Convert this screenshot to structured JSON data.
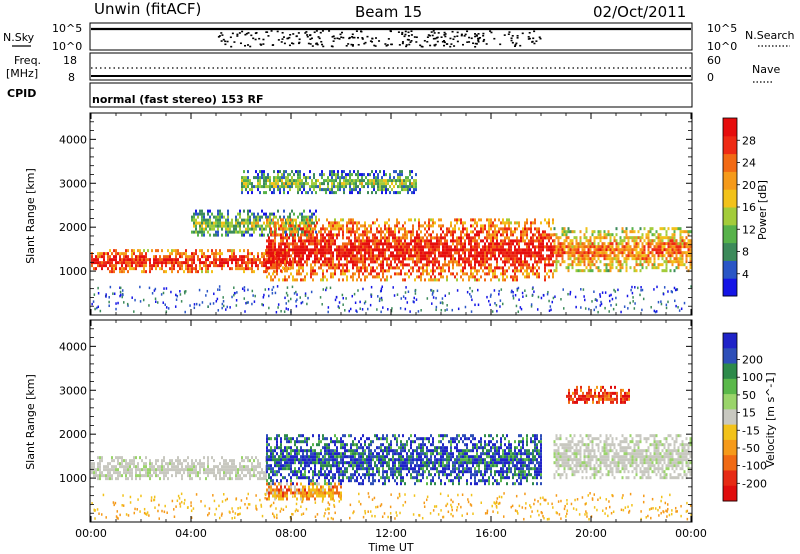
{
  "header": {
    "station": "Unwin (fitACF)",
    "beam": "Beam 15",
    "date": "02/Oct/2011"
  },
  "top_panels": {
    "nsky_label": "N.Sky",
    "nsky_ticks": [
      "10^5",
      "10^0"
    ],
    "nsearch_label": "N.Search",
    "nsearch_ticks": [
      "10^5",
      "10^0"
    ],
    "freq_label": "Freq.",
    "freq_unit": "[MHz]",
    "freq_ticks": [
      "18",
      "8"
    ],
    "nave_label": "Nave",
    "nave_ticks": [
      "60",
      "0"
    ],
    "cpid_label": "CPID",
    "cpid_text": "normal (fast stereo) 153 RF"
  },
  "chart_data": [
    {
      "type": "heatmap",
      "name": "power",
      "ylabel": "Slant Range [km]",
      "xlabel": "Time UT",
      "yticks": [
        "1000",
        "2000",
        "3000",
        "4000"
      ],
      "ylim": [
        0,
        4600
      ],
      "xlim": [
        "00:00",
        "24:00"
      ],
      "xticks": [
        "00:00",
        "04:00",
        "08:00",
        "12:00",
        "16:00",
        "20:00",
        "00:00"
      ],
      "colorbar": {
        "label": "Power [dB]",
        "ticks": [
          "4",
          "8",
          "12",
          "16",
          "20",
          "24",
          "28"
        ],
        "colors": [
          "#1515e6",
          "#2a56c6",
          "#3c8a5a",
          "#57b24a",
          "#a3cc3a",
          "#f2c21a",
          "#f59a1a",
          "#f26a14",
          "#ee2a14",
          "#e60d0d"
        ]
      },
      "regions": [
        {
          "t0": 0.0,
          "t1": 8.0,
          "r0": 1000,
          "r1": 1500,
          "level": "strong"
        },
        {
          "t0": 4.0,
          "t1": 9.0,
          "r0": 1800,
          "r1": 2400,
          "level": "weak"
        },
        {
          "t0": 7.0,
          "t1": 18.5,
          "r0": 800,
          "r1": 2200,
          "level": "strong"
        },
        {
          "t0": 18.5,
          "t1": 24.0,
          "r0": 1000,
          "r1": 2000,
          "level": "medium"
        },
        {
          "t0": 6.0,
          "t1": 13.0,
          "r0": 2800,
          "r1": 3300,
          "level": "weak"
        }
      ]
    },
    {
      "type": "heatmap",
      "name": "velocity",
      "ylabel": "Slant Range [km]",
      "xlabel": "Time UT",
      "yticks": [
        "1000",
        "2000",
        "3000",
        "4000"
      ],
      "ylim": [
        0,
        4600
      ],
      "xlim": [
        "00:00",
        "24:00"
      ],
      "xticks": [
        "00:00",
        "04:00",
        "08:00",
        "12:00",
        "16:00",
        "20:00",
        "00:00"
      ],
      "colorbar": {
        "label": "Velocity [m s^-1]",
        "ticks": [
          "200",
          "100",
          "50",
          "15",
          "-15",
          "-50",
          "-100",
          "-200"
        ],
        "colors": [
          "#1f23c8",
          "#2e4fb8",
          "#2d8a4a",
          "#5ab84a",
          "#9ad46a",
          "#c8c8c0",
          "#f2c21a",
          "#f59a1a",
          "#f06a14",
          "#e62a14",
          "#e00d0d"
        ]
      },
      "regions": [
        {
          "t0": 0.0,
          "t1": 7.0,
          "r0": 1000,
          "r1": 1500,
          "velocity": 0
        },
        {
          "t0": 7.0,
          "t1": 18.0,
          "r0": 900,
          "r1": 2000,
          "velocity": 100
        },
        {
          "t0": 7.0,
          "t1": 10.0,
          "r0": 500,
          "r1": 900,
          "velocity": -60
        },
        {
          "t0": 18.5,
          "t1": 24.0,
          "r0": 1000,
          "r1": 2000,
          "velocity": 0
        },
        {
          "t0": 19.0,
          "t1": 21.5,
          "r0": 2700,
          "r1": 3100,
          "velocity": -150
        }
      ]
    }
  ]
}
